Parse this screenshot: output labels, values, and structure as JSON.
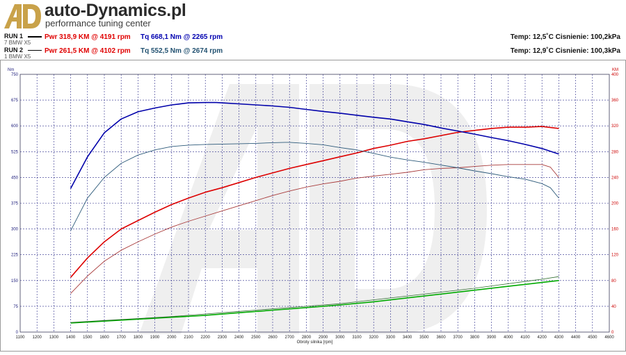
{
  "header": {
    "brand": "auto-Dynamics.pl",
    "tagline": "performance tuning center",
    "logo_text": "AD"
  },
  "runs": [
    {
      "label": "RUN 1",
      "car": "7 BMW X5",
      "pwr": "Pwr  318,9 KM @ 4191 rpm",
      "tq": "Tq 668,1 Nm @ 2265 rpm",
      "env": "Temp: 12,5˚C   Cisnienie: 100,2kPa"
    },
    {
      "label": "RUN 2",
      "car": "1 BMW X5",
      "pwr": "Pwr  261,5 KM @ 4102 rpm",
      "tq": "Tq 552,5 Nm @ 2674 rpm",
      "env": "Temp: 12,9˚C   Cisnienie: 100,3kPa"
    }
  ],
  "colors": {
    "run1_power": "#dd0000",
    "run2_power": "#a83a3a",
    "run1_torque": "#0000aa",
    "run2_torque": "#2d5a7a",
    "run1_loss": "#00aa00",
    "run2_loss": "#2b6a2b",
    "grid": "#2b2b8a",
    "left_axis": "#1a1a7a",
    "right_axis": "#cc0000"
  },
  "chart_data": {
    "type": "line",
    "xlabel": "Obroty silnika [rpm]",
    "ylabel_left": "Nm",
    "ylabel_right": "KM",
    "xlim": [
      1100,
      4600
    ],
    "ylim_left": [
      0,
      750
    ],
    "ylim_right": [
      0,
      400
    ],
    "x_ticks": [
      1100,
      1200,
      1300,
      1400,
      1500,
      1600,
      1700,
      1800,
      1900,
      2000,
      2100,
      2200,
      2300,
      2400,
      2500,
      2600,
      2700,
      2800,
      2900,
      3000,
      3100,
      3200,
      3300,
      3400,
      3500,
      3600,
      3700,
      3800,
      3900,
      4000,
      4100,
      4200,
      4300,
      4400,
      4500,
      4600
    ],
    "y_ticks_left": [
      0,
      75,
      150,
      225,
      300,
      375,
      450,
      525,
      600,
      675,
      750
    ],
    "y_ticks_right": [
      0,
      40,
      80,
      120,
      160,
      200,
      240,
      280,
      320,
      360,
      400
    ],
    "grid": true,
    "series": [
      {
        "name": "RUN 1 Pwr",
        "axis": "right",
        "color_key": "run1_power",
        "width": 1.6,
        "x": [
          1400,
          1500,
          1600,
          1700,
          1800,
          1900,
          2000,
          2100,
          2200,
          2300,
          2400,
          2500,
          2600,
          2700,
          2800,
          2900,
          3000,
          3100,
          3200,
          3300,
          3400,
          3500,
          3600,
          3700,
          3800,
          3900,
          4000,
          4100,
          4200,
          4300
        ],
        "y": [
          85,
          115,
          140,
          160,
          173,
          186,
          198,
          208,
          217,
          224,
          232,
          240,
          247,
          254,
          260,
          266,
          272,
          278,
          285,
          290,
          296,
          300,
          305,
          310,
          313,
          316,
          318,
          318,
          319,
          316
        ]
      },
      {
        "name": "RUN 2 Pwr",
        "axis": "right",
        "color_key": "run2_power",
        "width": 0.9,
        "x": [
          1400,
          1500,
          1600,
          1700,
          1800,
          1900,
          2000,
          2100,
          2200,
          2300,
          2400,
          2500,
          2600,
          2700,
          2800,
          2900,
          3000,
          3100,
          3200,
          3300,
          3400,
          3500,
          3600,
          3700,
          3800,
          3900,
          4000,
          4100,
          4200,
          4250,
          4300
        ],
        "y": [
          60,
          87,
          110,
          127,
          140,
          152,
          163,
          172,
          180,
          188,
          196,
          204,
          212,
          219,
          225,
          230,
          234,
          239,
          242,
          245,
          248,
          252,
          254,
          255,
          257,
          259,
          260,
          260,
          260,
          256,
          240
        ]
      },
      {
        "name": "RUN 1 Tq",
        "axis": "left",
        "color_key": "run1_torque",
        "width": 1.6,
        "x": [
          1400,
          1500,
          1600,
          1700,
          1800,
          1900,
          2000,
          2100,
          2200,
          2265,
          2300,
          2400,
          2500,
          2600,
          2700,
          2800,
          2900,
          3000,
          3100,
          3200,
          3300,
          3400,
          3500,
          3600,
          3700,
          3800,
          3900,
          4000,
          4100,
          4200,
          4300
        ],
        "y": [
          418,
          510,
          580,
          620,
          641,
          652,
          661,
          667,
          668,
          668,
          667,
          664,
          661,
          658,
          654,
          648,
          642,
          637,
          631,
          625,
          620,
          612,
          604,
          594,
          585,
          576,
          566,
          557,
          546,
          534,
          518
        ]
      },
      {
        "name": "RUN 2 Tq",
        "axis": "left",
        "color_key": "run2_torque",
        "width": 0.9,
        "x": [
          1400,
          1500,
          1600,
          1700,
          1800,
          1900,
          2000,
          2100,
          2200,
          2300,
          2400,
          2500,
          2600,
          2674,
          2700,
          2800,
          2900,
          3000,
          3100,
          3200,
          3300,
          3400,
          3500,
          3600,
          3700,
          3800,
          3900,
          4000,
          4100,
          4200,
          4250,
          4300
        ],
        "y": [
          295,
          390,
          450,
          491,
          515,
          530,
          540,
          544,
          546,
          547,
          548,
          549,
          551,
          552,
          552,
          549,
          545,
          537,
          530,
          520,
          509,
          501,
          494,
          486,
          478,
          469,
          461,
          452,
          445,
          432,
          420,
          390
        ]
      },
      {
        "name": "RUN 1 Loss",
        "axis": "right",
        "color_key": "run1_loss",
        "width": 1.6,
        "x": [
          1400,
          1600,
          1800,
          2000,
          2200,
          2400,
          2600,
          2800,
          3000,
          3200,
          3400,
          3600,
          3800,
          4000,
          4200,
          4300
        ],
        "y": [
          14,
          17,
          20,
          23,
          26,
          30,
          34,
          38,
          42,
          47,
          53,
          59,
          65,
          71,
          77,
          80
        ]
      },
      {
        "name": "RUN 2 Loss",
        "axis": "right",
        "color_key": "run2_loss",
        "width": 0.8,
        "x": [
          1400,
          1600,
          1800,
          2000,
          2200,
          2400,
          2600,
          2800,
          3000,
          3200,
          3400,
          3600,
          3800,
          4000,
          4200,
          4300
        ],
        "y": [
          15,
          18,
          21,
          24,
          28,
          32,
          36,
          40,
          44,
          50,
          56,
          62,
          68,
          75,
          82,
          86
        ]
      }
    ]
  }
}
